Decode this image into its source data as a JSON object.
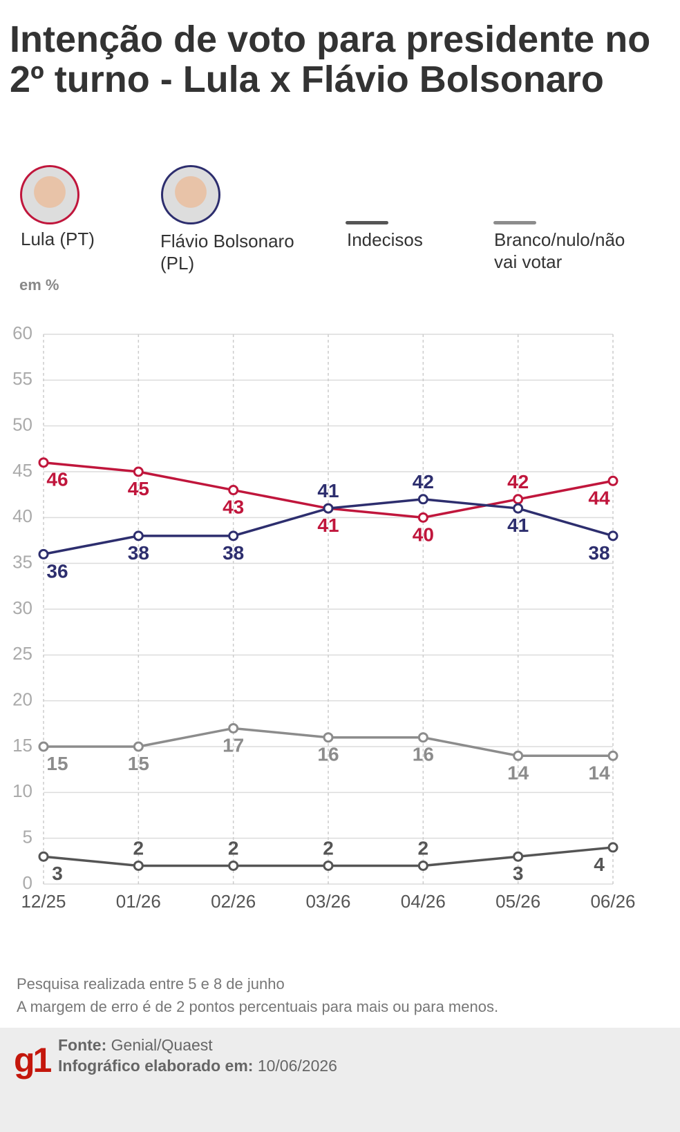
{
  "chart_data": {
    "type": "line",
    "title": "Intenção de voto para presidente no 2º turno - Lula x Flávio Bolsonaro",
    "unit_note": "em %",
    "categories": [
      "12/25",
      "01/26",
      "02/26",
      "03/26",
      "04/26",
      "05/26",
      "06/26"
    ],
    "series": [
      {
        "name": "Lula (PT)",
        "color": "#c0163c",
        "values": [
          46,
          45,
          43,
          41,
          40,
          42,
          44
        ]
      },
      {
        "name": "Flávio Bolsonaro (PL)",
        "color": "#2d2e6e",
        "values": [
          36,
          38,
          38,
          41,
          42,
          41,
          38
        ]
      },
      {
        "name": "Indecisos",
        "color": "#555555",
        "values": [
          3,
          2,
          2,
          2,
          2,
          3,
          4
        ]
      },
      {
        "name": "Branco/nulo/não vai votar",
        "color": "#8c8c8c",
        "values": [
          15,
          15,
          17,
          16,
          16,
          14,
          14
        ]
      }
    ],
    "ylim": [
      0,
      60
    ],
    "yticks": [
      0,
      5,
      10,
      15,
      20,
      25,
      30,
      35,
      40,
      45,
      50,
      55,
      60
    ],
    "grid": true
  },
  "notes": [
    "Pesquisa realizada entre 5 e 8 de junho",
    "A margem de erro é de 2 pontos percentuais para mais ou para menos."
  ],
  "footer": {
    "logo": "g1",
    "source_label": "Fonte:",
    "source": "Genial/Quaest",
    "date_label": "Infográfico elaborado em:",
    "date": "10/06/2026"
  }
}
